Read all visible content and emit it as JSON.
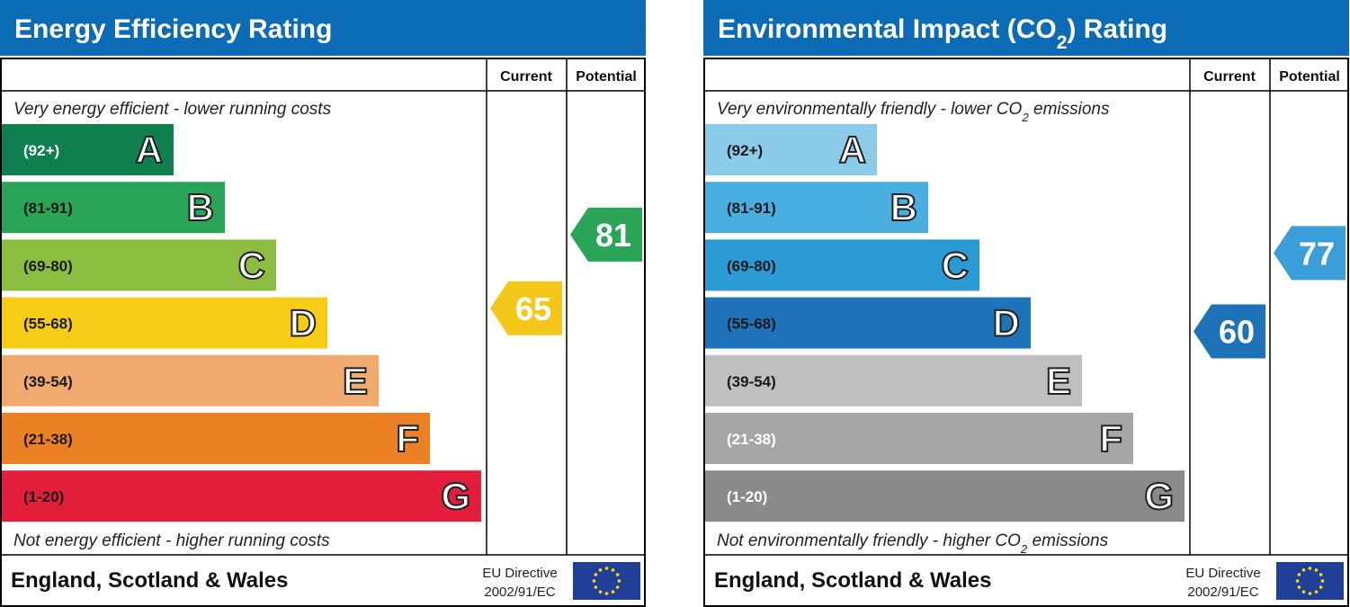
{
  "panels": [
    {
      "title": [
        {
          "text": "Energy Efficiency Rating"
        }
      ],
      "columns": [
        "Current",
        "Potential"
      ],
      "top_note": [
        {
          "text": "Very energy efficient - lower running costs"
        }
      ],
      "bottom_note": [
        {
          "text": "Not energy efficient - higher running costs"
        }
      ],
      "bands": [
        {
          "range": "(92+)",
          "letter": "A",
          "color": "#0f7f4f",
          "text_color": "#ffffff"
        },
        {
          "range": "(81-91)",
          "letter": "B",
          "color": "#2aa457",
          "text_color": "#1a1a1a"
        },
        {
          "range": "(69-80)",
          "letter": "C",
          "color": "#8dbd40",
          "text_color": "#1a1a1a"
        },
        {
          "range": "(55-68)",
          "letter": "D",
          "color": "#f6cc17",
          "text_color": "#1a1a1a"
        },
        {
          "range": "(39-54)",
          "letter": "E",
          "color": "#f1aa6d",
          "text_color": "#1a1a1a"
        },
        {
          "range": "(21-38)",
          "letter": "F",
          "color": "#ec8025",
          "text_color": "#1a1a1a"
        },
        {
          "range": "(1-20)",
          "letter": "G",
          "color": "#e21e3a",
          "text_color": "#1a1a1a"
        }
      ],
      "current": {
        "value": 65,
        "color": "#f4c81a"
      },
      "potential": {
        "value": 81,
        "color": "#2aa457"
      },
      "footer": "England, Scotland & Wales",
      "directive": [
        "EU Directive",
        "2002/91/EC"
      ]
    },
    {
      "title": [
        {
          "text": "Environmental Impact (CO"
        },
        {
          "text": "2",
          "sub": true
        },
        {
          "text": ") Rating"
        }
      ],
      "columns": [
        "Current",
        "Potential"
      ],
      "top_note": [
        {
          "text": "Very environmentally friendly - lower CO"
        },
        {
          "text": "2",
          "sub": true
        },
        {
          "text": " emissions"
        }
      ],
      "bottom_note": [
        {
          "text": "Not environmentally friendly - higher CO"
        },
        {
          "text": "2",
          "sub": true
        },
        {
          "text": " emissions"
        }
      ],
      "bands": [
        {
          "range": "(92+)",
          "letter": "A",
          "color": "#8ccae9",
          "text_color": "#1a1a1a"
        },
        {
          "range": "(81-91)",
          "letter": "B",
          "color": "#4aaee0",
          "text_color": "#1a1a1a"
        },
        {
          "range": "(69-80)",
          "letter": "C",
          "color": "#2a9bd3",
          "text_color": "#1a1a1a"
        },
        {
          "range": "(55-68)",
          "letter": "D",
          "color": "#1f73b8",
          "text_color": "#1a1a1a"
        },
        {
          "range": "(39-54)",
          "letter": "E",
          "color": "#bfbfbf",
          "text_color": "#1a1a1a"
        },
        {
          "range": "(21-38)",
          "letter": "F",
          "color": "#a6a6a6",
          "text_color": "#ffffff"
        },
        {
          "range": "(1-20)",
          "letter": "G",
          "color": "#8a8a8a",
          "text_color": "#ffffff"
        }
      ],
      "current": {
        "value": 60,
        "color": "#1d72b8"
      },
      "potential": {
        "value": 77,
        "color": "#3a9ed8"
      },
      "footer": "England, Scotland & Wales",
      "directive": [
        "EU Directive",
        "2002/91/EC"
      ]
    }
  ]
}
